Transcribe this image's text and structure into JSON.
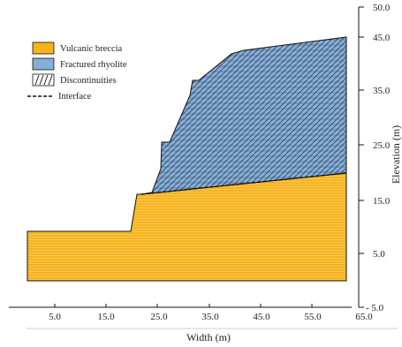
{
  "legend": [
    {
      "key": "breccia",
      "label": "Vulcanic breccia",
      "color": "#f6b31d"
    },
    {
      "key": "rhyolite",
      "label": "Fractured rhyolite",
      "color": "#86aed7"
    },
    {
      "key": "discontinuities",
      "label": "Discontinuities"
    },
    {
      "key": "interface",
      "label": "Interface"
    }
  ],
  "axes": {
    "x_title": "Width (m)",
    "y_title": "Elevation (m)",
    "x_ticks": [
      "5.0",
      "15.0",
      "25.0",
      "35.0",
      "45.0",
      "55.0",
      "65.0"
    ],
    "y_ticks": [
      "50.0",
      "45.0",
      "35.0",
      "25.0",
      "15.0",
      "5.0",
      "- 5.0"
    ]
  }
}
